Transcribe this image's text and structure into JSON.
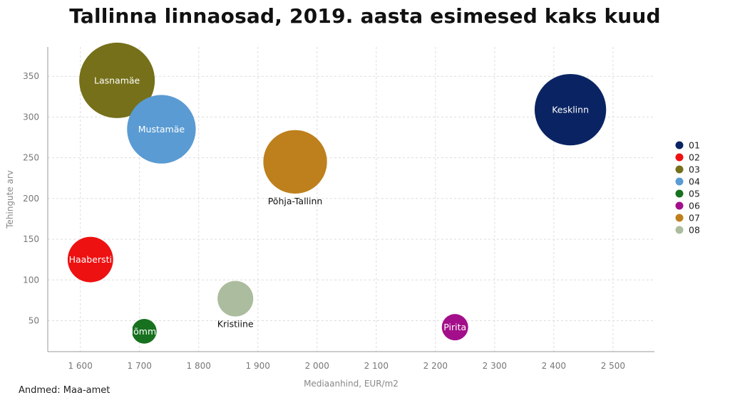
{
  "chart_data": {
    "type": "scatter",
    "title": "Tallinna linnaosad, 2019. aasta esimesed kaks kuud",
    "xlabel": "Mediaanhind, EUR/m2",
    "ylabel": "Tehingute arv",
    "xlim": [
      1545,
      2570
    ],
    "ylim": [
      12,
      386
    ],
    "x_ticks": [
      1600,
      1700,
      1800,
      1900,
      2000,
      2100,
      2200,
      2300,
      2400,
      2500
    ],
    "x_tick_labels": [
      "1 600",
      "1 700",
      "1 800",
      "1 900",
      "2 000",
      "2 100",
      "2 200",
      "2 300",
      "2 400",
      "2 500"
    ],
    "y_ticks": [
      50,
      100,
      150,
      200,
      250,
      300,
      350
    ],
    "grid": true,
    "legend": "right",
    "bubble_size_note": "",
    "points": [
      {
        "code": "01",
        "name": "Kesklinn",
        "x": 2428,
        "y": 309,
        "size": 309,
        "color": "#0a2463",
        "label_inside": true,
        "label_color": "#ffffff"
      },
      {
        "code": "02",
        "name": "Haabersti",
        "x": 1617,
        "y": 125,
        "size": 125,
        "color": "#ee1111",
        "label_inside": true,
        "label_color": "#ffffff"
      },
      {
        "code": "03",
        "name": "Lasnamäe",
        "x": 1662,
        "y": 345,
        "size": 345,
        "color": "#757019",
        "label_inside": true,
        "label_color": "#ffffff"
      },
      {
        "code": "04",
        "name": "Mustamäe",
        "x": 1737,
        "y": 285,
        "size": 285,
        "color": "#5a9bd3",
        "label_inside": true,
        "label_color": "#ffffff"
      },
      {
        "code": "05",
        "name": "Nõmme",
        "x": 1708,
        "y": 37,
        "size": 37,
        "color": "#17711f",
        "label_inside": true,
        "label_color": "#ffffff"
      },
      {
        "code": "06",
        "name": "Pirita",
        "x": 2233,
        "y": 42,
        "size": 42,
        "color": "#a30f8a",
        "label_inside": true,
        "label_color": "#ffffff"
      },
      {
        "code": "07",
        "name": "Põhja-Tallinn",
        "x": 1963,
        "y": 245,
        "size": 245,
        "color": "#be801c",
        "label_inside": false,
        "label_color": "#111111"
      },
      {
        "code": "08",
        "name": "Kristiine",
        "x": 1862,
        "y": 77,
        "size": 77,
        "color": "#acbc9e",
        "label_inside": false,
        "label_color": "#111111"
      }
    ],
    "source": "Andmed: Maa-amet"
  }
}
